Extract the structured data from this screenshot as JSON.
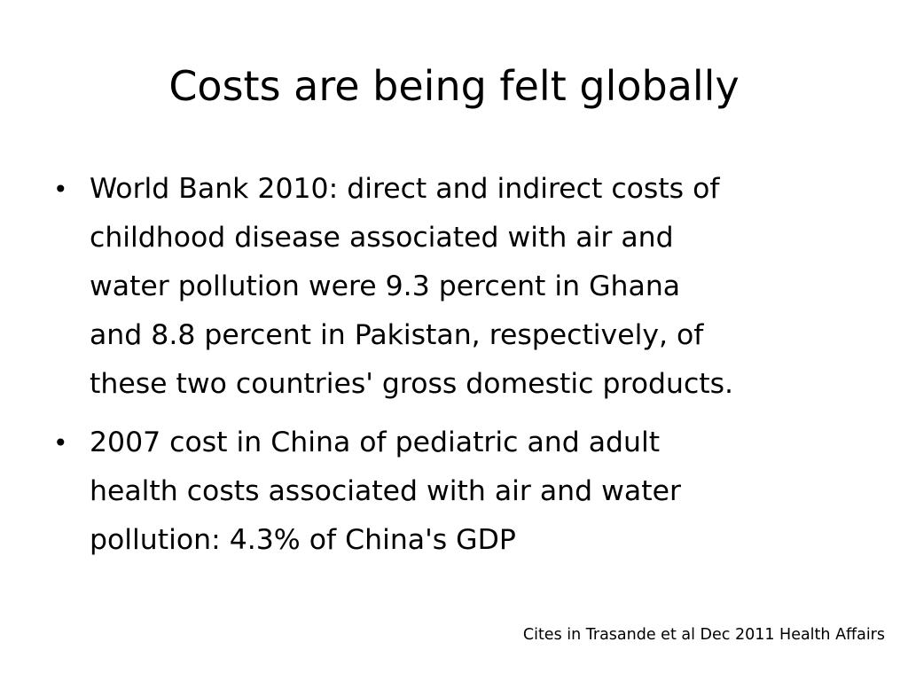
{
  "slide": {
    "title": "Costs are being felt globally",
    "bullet_symbol": "•",
    "bullets": [
      {
        "lines": [
          "World Bank 2010: direct and indirect costs of",
          "childhood disease associated with air and",
          "water pollution were 9.3 percent in Ghana",
          "and 8.8 percent in Pakistan, respectively, of",
          "these two countries' gross domestic products."
        ]
      },
      {
        "lines": [
          "2007 cost in China of pediatric and adult",
          "health costs associated with air and water",
          "pollution: 4.3% of China's GDP"
        ]
      }
    ],
    "citation": "Cites in Trasande et al Dec 2011 Health Affairs"
  }
}
